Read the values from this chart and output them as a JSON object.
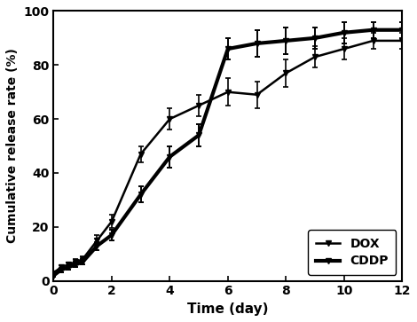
{
  "DOX_x": [
    0,
    0.25,
    0.5,
    0.75,
    1,
    1.5,
    2,
    3,
    4,
    5,
    6,
    7,
    8,
    9,
    10,
    11,
    12
  ],
  "DOX_y": [
    3,
    5,
    6,
    7,
    8,
    15,
    22,
    47,
    60,
    65,
    70,
    69,
    77,
    83,
    86,
    89,
    89
  ],
  "DOX_err": [
    0.5,
    0.8,
    0.8,
    1,
    1,
    2,
    2.5,
    3,
    4,
    4,
    5,
    5,
    5,
    4,
    4,
    3,
    3
  ],
  "CDDP_x": [
    0,
    0.25,
    0.5,
    0.75,
    1,
    1.5,
    2,
    3,
    4,
    5,
    6,
    7,
    8,
    9,
    10,
    11,
    12
  ],
  "CDDP_y": [
    2,
    4,
    5,
    6,
    7,
    13,
    17,
    32,
    46,
    54,
    86,
    88,
    89,
    90,
    92,
    93,
    93
  ],
  "CDDP_err": [
    0.5,
    0.7,
    0.7,
    1,
    1,
    1.5,
    2,
    3,
    4,
    4,
    4,
    5,
    5,
    4,
    4,
    3,
    3
  ],
  "xlabel": "Time (day)",
  "ylabel": "Cumulative release rate (%)",
  "xlim": [
    0,
    12
  ],
  "ylim": [
    0,
    100
  ],
  "xticks": [
    0,
    2,
    4,
    6,
    8,
    10,
    12
  ],
  "yticks": [
    0,
    20,
    40,
    60,
    80,
    100
  ],
  "legend_labels": [
    "DOX",
    "CDDP"
  ],
  "line_color": "#000000",
  "background_color": "#ffffff",
  "marker": "v",
  "linewidth_DOX": 1.8,
  "linewidth_CDDP": 3.0,
  "markersize": 5
}
